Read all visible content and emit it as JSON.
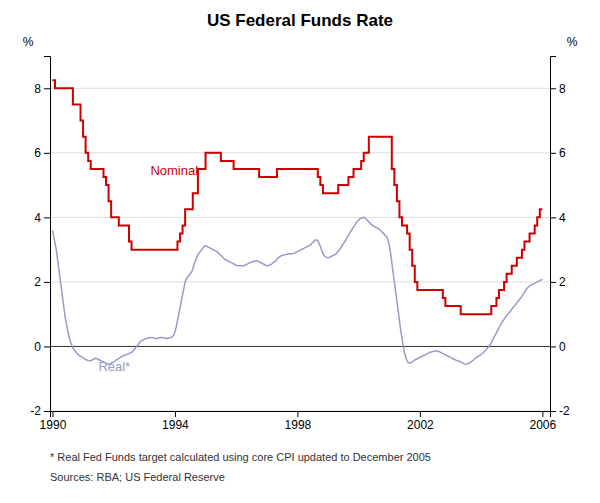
{
  "chart_data": {
    "type": "line",
    "title": "US Federal Funds Rate",
    "ylabel": "%",
    "y2label": "%",
    "xlim": [
      1989.92,
      2006.25
    ],
    "xticks": [
      1990,
      1994,
      1998,
      2002,
      2006
    ],
    "ylim": [
      -2,
      9
    ],
    "yticks": [
      -2,
      0,
      2,
      4,
      6,
      8
    ],
    "y2lim": [
      -2,
      9
    ],
    "y2ticks": [
      -2,
      0,
      2,
      4,
      6,
      8
    ],
    "grid": true,
    "series": [
      {
        "color": "#9999cc",
        "x": [
          1990.0,
          1990.042,
          1990.083,
          1990.125,
          1990.167,
          1990.208,
          1990.25,
          1990.292,
          1990.333,
          1990.375,
          1990.417,
          1990.458,
          1990.5,
          1990.542,
          1990.583,
          1990.625,
          1990.667,
          1990.708,
          1990.75,
          1990.792,
          1990.833,
          1990.875,
          1990.917,
          1990.958,
          1991.0,
          1991.042,
          1991.083,
          1991.125,
          1991.167,
          1991.208,
          1991.25,
          1991.292,
          1991.333,
          1991.375,
          1991.417,
          1991.458,
          1991.5,
          1991.542,
          1991.583,
          1991.625,
          1991.667,
          1991.708,
          1991.75,
          1991.792,
          1991.833,
          1991.875,
          1991.917,
          1991.958,
          1992.0,
          1992.042,
          1992.083,
          1992.125,
          1992.167,
          1992.208,
          1992.25,
          1992.292,
          1992.333,
          1992.375,
          1992.417,
          1992.458,
          1992.5,
          1992.542,
          1992.583,
          1992.625,
          1992.667,
          1992.708,
          1992.75,
          1992.792,
          1992.833,
          1992.875,
          1992.917,
          1992.958,
          1993.0,
          1993.042,
          1993.083,
          1993.125,
          1993.167,
          1993.208,
          1993.25,
          1993.292,
          1993.333,
          1993.375,
          1993.417,
          1993.458,
          1993.5,
          1993.542,
          1993.583,
          1993.625,
          1993.667,
          1993.708,
          1993.75,
          1993.792,
          1993.833,
          1993.875,
          1993.917,
          1993.958,
          1994.0,
          1994.042,
          1994.083,
          1994.125,
          1994.167,
          1994.208,
          1994.25,
          1994.292,
          1994.333,
          1994.375,
          1994.417,
          1994.458,
          1994.5,
          1994.542,
          1994.583,
          1994.625,
          1994.667,
          1994.708,
          1994.75,
          1994.792,
          1994.833,
          1994.875,
          1994.917,
          1994.958,
          1995.0,
          1995.042,
          1995.083,
          1995.125,
          1995.167,
          1995.208,
          1995.25,
          1995.292,
          1995.333,
          1995.375,
          1995.417,
          1995.458,
          1995.5,
          1995.542,
          1995.583,
          1995.625,
          1995.667,
          1995.708,
          1995.75,
          1995.792,
          1995.833,
          1995.875,
          1995.917,
          1995.958,
          1996.0,
          1996.042,
          1996.083,
          1996.125,
          1996.167,
          1996.208,
          1996.25,
          1996.292,
          1996.333,
          1996.375,
          1996.417,
          1996.458,
          1996.5,
          1996.542,
          1996.583,
          1996.625,
          1996.667,
          1996.708,
          1996.75,
          1996.792,
          1996.833,
          1996.875,
          1996.917,
          1996.958,
          1997.0,
          1997.042,
          1997.083,
          1997.125,
          1997.167,
          1997.208,
          1997.25,
          1997.292,
          1997.333,
          1997.375,
          1997.417,
          1997.458,
          1997.5,
          1997.542,
          1997.583,
          1997.625,
          1997.667,
          1997.708,
          1997.75,
          1997.792,
          1997.833,
          1997.875,
          1997.917,
          1997.958,
          1998.0,
          1998.042,
          1998.083,
          1998.125,
          1998.167,
          1998.208,
          1998.25,
          1998.292,
          1998.333,
          1998.375,
          1998.417,
          1998.458,
          1998.5,
          1998.542,
          1998.583,
          1998.625,
          1998.667,
          1998.708,
          1998.75,
          1998.792,
          1998.833,
          1998.875,
          1998.917,
          1998.958,
          1999.0,
          1999.042,
          1999.083,
          1999.125,
          1999.167,
          1999.208,
          1999.25,
          1999.292,
          1999.333,
          1999.375,
          1999.417,
          1999.458,
          1999.5,
          1999.542,
          1999.583,
          1999.625,
          1999.667,
          1999.708,
          1999.75,
          1999.792,
          1999.833,
          1999.875,
          1999.917,
          1999.958,
          2000.0,
          2000.042,
          2000.083,
          2000.125,
          2000.167,
          2000.208,
          2000.25,
          2000.292,
          2000.333,
          2000.375,
          2000.417,
          2000.458,
          2000.5,
          2000.542,
          2000.583,
          2000.625,
          2000.667,
          2000.708,
          2000.75,
          2000.792,
          2000.833,
          2000.875,
          2000.917,
          2000.958,
          2001.0,
          2001.042,
          2001.083,
          2001.125,
          2001.167,
          2001.208,
          2001.25,
          2001.292,
          2001.333,
          2001.375,
          2001.417,
          2001.458,
          2001.5,
          2001.542,
          2001.583,
          2001.625,
          2001.667,
          2001.708,
          2001.75,
          2001.792,
          2001.833,
          2001.875,
          2001.917,
          2001.958,
          2002.0,
          2002.042,
          2002.083,
          2002.125,
          2002.167,
          2002.208,
          2002.25,
          2002.292,
          2002.333,
          2002.375,
          2002.417,
          2002.458,
          2002.5,
          2002.542,
          2002.583,
          2002.625,
          2002.667,
          2002.708,
          2002.75,
          2002.792,
          2002.833,
          2002.875,
          2002.917,
          2002.958,
          2003.0,
          2003.042,
          2003.083,
          2003.125,
          2003.167,
          2003.208,
          2003.25,
          2003.292,
          2003.333,
          2003.375,
          2003.417,
          2003.458,
          2003.5,
          2003.542,
          2003.583,
          2003.625,
          2003.667,
          2003.708,
          2003.75,
          2003.792,
          2003.833,
          2003.875,
          2003.917,
          2003.958,
          2004.0,
          2004.042,
          2004.083,
          2004.125,
          2004.167,
          2004.208,
          2004.25,
          2004.292,
          2004.333,
          2004.375,
          2004.417,
          2004.458,
          2004.5,
          2004.542,
          2004.583,
          2004.625,
          2004.667,
          2004.708,
          2004.75,
          2004.792,
          2004.833,
          2004.875,
          2004.917,
          2004.958,
          2005.0,
          2005.042,
          2005.083,
          2005.125,
          2005.167,
          2005.208,
          2005.25,
          2005.292,
          2005.333,
          2005.375,
          2005.417,
          2005.458,
          2005.5,
          2005.542,
          2005.583,
          2005.625,
          2005.667,
          2005.708,
          2005.75,
          2005.792,
          2005.833,
          2005.875,
          2005.917,
          2005.958,
          2006.0
        ],
        "values": [
          3.6,
          3.4,
          3.2,
          3.0,
          2.7,
          2.4,
          2.1,
          1.8,
          1.5,
          1.2,
          0.9,
          0.7,
          0.5,
          0.3,
          0.15,
          0.05,
          -0.05,
          -0.1,
          -0.15,
          -0.2,
          -0.25,
          -0.28,
          -0.3,
          -0.32,
          -0.35,
          -0.38,
          -0.4,
          -0.42,
          -0.44,
          -0.45,
          -0.44,
          -0.42,
          -0.4,
          -0.38,
          -0.37,
          -0.38,
          -0.4,
          -0.42,
          -0.44,
          -0.46,
          -0.48,
          -0.5,
          -0.52,
          -0.54,
          -0.55,
          -0.54,
          -0.52,
          -0.5,
          -0.48,
          -0.45,
          -0.42,
          -0.4,
          -0.37,
          -0.34,
          -0.32,
          -0.3,
          -0.28,
          -0.26,
          -0.25,
          -0.24,
          -0.22,
          -0.2,
          -0.18,
          -0.15,
          -0.1,
          -0.05,
          0.0,
          0.05,
          0.1,
          0.15,
          0.18,
          0.2,
          0.22,
          0.24,
          0.25,
          0.26,
          0.27,
          0.28,
          0.28,
          0.27,
          0.26,
          0.25,
          0.25,
          0.26,
          0.27,
          0.28,
          0.28,
          0.27,
          0.26,
          0.25,
          0.25,
          0.26,
          0.27,
          0.28,
          0.3,
          0.35,
          0.45,
          0.6,
          0.8,
          1.0,
          1.2,
          1.4,
          1.6,
          1.8,
          2.0,
          2.1,
          2.15,
          2.2,
          2.25,
          2.3,
          2.4,
          2.55,
          2.65,
          2.75,
          2.85,
          2.9,
          2.95,
          3.0,
          3.05,
          3.1,
          3.12,
          3.1,
          3.08,
          3.06,
          3.04,
          3.02,
          3.0,
          2.98,
          2.96,
          2.94,
          2.9,
          2.86,
          2.82,
          2.78,
          2.74,
          2.7,
          2.68,
          2.66,
          2.64,
          2.62,
          2.6,
          2.58,
          2.56,
          2.54,
          2.52,
          2.5,
          2.5,
          2.5,
          2.5,
          2.5,
          2.5,
          2.52,
          2.54,
          2.56,
          2.58,
          2.6,
          2.62,
          2.63,
          2.64,
          2.65,
          2.66,
          2.64,
          2.62,
          2.6,
          2.58,
          2.56,
          2.54,
          2.52,
          2.5,
          2.5,
          2.52,
          2.54,
          2.56,
          2.6,
          2.62,
          2.65,
          2.7,
          2.74,
          2.78,
          2.8,
          2.82,
          2.83,
          2.84,
          2.85,
          2.86,
          2.87,
          2.87,
          2.87,
          2.87,
          2.88,
          2.9,
          2.92,
          2.94,
          2.96,
          2.98,
          3.0,
          3.02,
          3.04,
          3.06,
          3.08,
          3.1,
          3.12,
          3.14,
          3.18,
          3.22,
          3.26,
          3.3,
          3.3,
          3.28,
          3.2,
          3.1,
          2.98,
          2.88,
          2.82,
          2.78,
          2.76,
          2.75,
          2.76,
          2.78,
          2.8,
          2.82,
          2.84,
          2.86,
          2.9,
          2.95,
          3.0,
          3.05,
          3.12,
          3.18,
          3.24,
          3.3,
          3.38,
          3.45,
          3.52,
          3.58,
          3.64,
          3.7,
          3.76,
          3.82,
          3.88,
          3.92,
          3.96,
          3.98,
          3.99,
          4.0,
          3.98,
          3.95,
          3.9,
          3.86,
          3.82,
          3.78,
          3.75,
          3.72,
          3.7,
          3.68,
          3.66,
          3.64,
          3.6,
          3.56,
          3.52,
          3.48,
          3.44,
          3.4,
          3.3,
          3.15,
          2.9,
          2.6,
          2.3,
          2.0,
          1.7,
          1.4,
          1.1,
          0.8,
          0.5,
          0.25,
          0.0,
          -0.2,
          -0.35,
          -0.45,
          -0.5,
          -0.52,
          -0.5,
          -0.48,
          -0.45,
          -0.42,
          -0.4,
          -0.38,
          -0.36,
          -0.34,
          -0.32,
          -0.3,
          -0.28,
          -0.26,
          -0.24,
          -0.22,
          -0.2,
          -0.18,
          -0.17,
          -0.16,
          -0.15,
          -0.14,
          -0.14,
          -0.15,
          -0.16,
          -0.18,
          -0.2,
          -0.22,
          -0.24,
          -0.26,
          -0.28,
          -0.3,
          -0.32,
          -0.34,
          -0.36,
          -0.38,
          -0.4,
          -0.42,
          -0.44,
          -0.45,
          -0.46,
          -0.48,
          -0.5,
          -0.52,
          -0.54,
          -0.55,
          -0.54,
          -0.52,
          -0.5,
          -0.48,
          -0.45,
          -0.42,
          -0.38,
          -0.35,
          -0.32,
          -0.3,
          -0.28,
          -0.25,
          -0.22,
          -0.18,
          -0.14,
          -0.1,
          -0.05,
          0.0,
          0.05,
          0.12,
          0.2,
          0.28,
          0.35,
          0.42,
          0.5,
          0.58,
          0.65,
          0.72,
          0.78,
          0.84,
          0.9,
          0.96,
          1.0,
          1.05,
          1.1,
          1.15,
          1.2,
          1.25,
          1.3,
          1.35,
          1.4,
          1.45,
          1.5,
          1.55,
          1.62,
          1.68,
          1.74,
          1.8,
          1.84,
          1.88,
          1.9,
          1.92,
          1.94,
          1.96,
          1.98,
          2.0,
          2.02,
          2.04,
          2.06,
          2.08
        ]
      },
      {
        "type": "step",
        "color": "#cc0000",
        "x": [
          1990.0,
          1990.083,
          1990.25,
          1990.583,
          1990.667,
          1990.917,
          1991.0,
          1991.083,
          1991.167,
          1991.25,
          1991.667,
          1991.75,
          1991.833,
          1991.917,
          1992.0,
          1992.167,
          1992.5,
          1992.583,
          1993.0,
          1993.917,
          1994.0,
          1994.083,
          1994.167,
          1994.25,
          1994.333,
          1994.583,
          1994.75,
          1995.0,
          1995.5,
          1995.917,
          1996.0,
          1996.75,
          1997.0,
          1997.333,
          1998.0,
          1998.667,
          1998.75,
          1998.833,
          1999.0,
          1999.333,
          1999.667,
          1999.833,
          2000.0,
          2000.083,
          2000.167,
          2000.333,
          2001.0,
          2001.083,
          2001.167,
          2001.25,
          2001.333,
          2001.417,
          2001.583,
          2001.667,
          2001.75,
          2001.833,
          2001.917,
          2002.0,
          2002.75,
          2002.833,
          2003.0,
          2003.333,
          2004.0,
          2004.333,
          2004.5,
          2004.583,
          2004.75,
          2004.833,
          2005.0,
          2005.167,
          2005.333,
          2005.417,
          2005.583,
          2005.75,
          2005.833,
          2005.917,
          2006.0
        ],
        "values": [
          8.25,
          8.0,
          8.0,
          8.0,
          7.5,
          7.0,
          6.5,
          6.0,
          5.75,
          5.5,
          5.25,
          5.0,
          4.5,
          4.0,
          4.0,
          3.75,
          3.25,
          3.0,
          3.0,
          3.0,
          3.0,
          3.25,
          3.5,
          3.75,
          4.25,
          4.75,
          5.5,
          6.0,
          5.75,
          5.5,
          5.5,
          5.25,
          5.25,
          5.5,
          5.5,
          5.25,
          5.0,
          4.75,
          4.75,
          5.0,
          5.25,
          5.5,
          5.5,
          5.75,
          6.0,
          6.5,
          6.5,
          5.5,
          5.0,
          4.5,
          4.0,
          3.75,
          3.5,
          3.0,
          2.5,
          2.0,
          1.75,
          1.75,
          1.5,
          1.25,
          1.25,
          1.0,
          1.0,
          1.25,
          1.5,
          1.75,
          2.0,
          2.25,
          2.5,
          2.75,
          3.0,
          3.25,
          3.5,
          3.75,
          4.0,
          4.25,
          4.25
        ]
      }
    ],
    "annotations": [
      {
        "text": "Nominal",
        "x": 1993.2,
        "y": 5.3,
        "color": "#cc0000"
      },
      {
        "text": "Real*",
        "x": 1991.5,
        "y": -0.75,
        "color": "#9999cc"
      }
    ],
    "footnotes": [
      "*   Real Fed Funds target calculated using core CPI updated to December 2005",
      "Sources: RBA; US Federal Reserve"
    ]
  }
}
